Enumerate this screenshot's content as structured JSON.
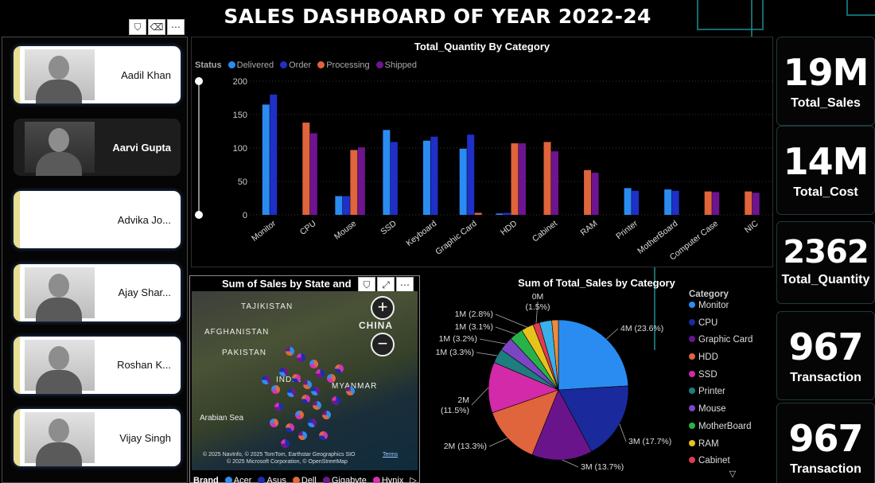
{
  "title": "SALES DASHBOARD OF YEAR 2022-24",
  "slicer": {
    "people": [
      {
        "name": "Aadil Khan",
        "selected": false
      },
      {
        "name": "Aarvi Gupta",
        "selected": true
      },
      {
        "name": "Advika Jo...",
        "selected": false
      },
      {
        "name": "Ajay Shar...",
        "selected": false
      },
      {
        "name": "Roshan K...",
        "selected": false
      },
      {
        "name": "Vijay Singh",
        "selected": false
      }
    ]
  },
  "toolbar_icons": [
    "filter-icon",
    "eraser-icon",
    "more-options-icon"
  ],
  "toolbar_glyphs": {
    "filter": "⛉",
    "eraser": "⌫",
    "more": "⋯",
    "focus": "⤢"
  },
  "kpis": [
    {
      "value": "19M",
      "label": "Total_Sales"
    },
    {
      "value": "14M",
      "label": "Total_Cost"
    },
    {
      "value": "2362",
      "label": "Total_Quantity"
    },
    {
      "value": "967",
      "label": "Transaction"
    },
    {
      "value": "967",
      "label": "Transaction"
    }
  ],
  "map": {
    "title": "Sum of Sales by State and",
    "labels": [
      "TAJIKISTAN",
      "AFGHANISTAN",
      "PAKISTAN",
      "CHINA",
      "INDIA",
      "MYANMAR",
      "Arabian Sea"
    ],
    "zoom_in": "+",
    "zoom_out": "−",
    "attribution": "© 2025 Microsoft Corporation, © OpenStreetMap",
    "attribution2": "© 2025 NavInfo, © 2025 TomTom, Earthstar Geographics SIO",
    "terms": "Terms",
    "brand_legend_title": "Brand",
    "brands": [
      {
        "name": "Acer",
        "color": "#2e8fef"
      },
      {
        "name": "Asus",
        "color": "#1a2fb0"
      },
      {
        "name": "Dell",
        "color": "#e06a3c"
      },
      {
        "name": "Gigabyte",
        "color": "#6b1a8c"
      },
      {
        "name": "Hynix",
        "color": "#d632b4"
      }
    ],
    "brand_more": "▷"
  },
  "chart_data": [
    {
      "type": "bar",
      "title": "Total_Quantity By Category",
      "legend_title": "Status",
      "categories": [
        "Monitor",
        "CPU",
        "Mouse",
        "SSD",
        "Keyboard",
        "Graphic Card",
        "HDD",
        "Cabinet",
        "RAM",
        "Printer",
        "MotherBoard",
        "Computer Case",
        "NIC"
      ],
      "ylim": [
        0,
        200
      ],
      "yticks": [
        0,
        50,
        100,
        150,
        200
      ],
      "series": [
        {
          "name": "Delivered",
          "color": "#2a8cf0",
          "values": [
            165,
            0,
            28,
            127,
            111,
            99,
            2,
            0,
            0,
            40,
            38,
            0,
            0
          ]
        },
        {
          "name": "Order",
          "color": "#1f2fc8",
          "values": [
            180,
            0,
            28,
            109,
            117,
            120,
            3,
            0,
            0,
            36,
            36,
            0,
            0
          ]
        },
        {
          "name": "Processing",
          "color": "#e0643c",
          "values": [
            0,
            138,
            97,
            0,
            0,
            3,
            107,
            109,
            67,
            0,
            0,
            35,
            35
          ]
        },
        {
          "name": "Shipped",
          "color": "#6e1490",
          "values": [
            0,
            122,
            101,
            0,
            0,
            0,
            107,
            95,
            63,
            0,
            0,
            34,
            33
          ]
        }
      ]
    },
    {
      "type": "pie",
      "title": "Sum of Total_Sales by Category",
      "legend_title": "Category",
      "slices": [
        {
          "label": "Monitor",
          "value": 23.6,
          "text": "4M (23.6%)",
          "color": "#2a8cf0"
        },
        {
          "label": "CPU",
          "value": 17.7,
          "text": "3M (17.7%)",
          "color": "#1a2a9c"
        },
        {
          "label": "Graphic Card",
          "value": 13.7,
          "text": "3M (13.7%)",
          "color": "#6a148c"
        },
        {
          "label": "HDD",
          "value": 13.3,
          "text": "2M (13.3%)",
          "color": "#e0643c"
        },
        {
          "label": "SSD",
          "value": 11.5,
          "text": "2M\n(11.5%)",
          "color": "#d22aa8"
        },
        {
          "label": "Printer",
          "value": 3.3,
          "text": "1M (3.3%)",
          "color": "#1e7d7d"
        },
        {
          "label": "Mouse",
          "value": 3.2,
          "text": "1M (3.2%)",
          "color": "#7b45c4"
        },
        {
          "label": "MotherBoard",
          "value": 3.1,
          "text": "1M (3.1%)",
          "color": "#27b34a"
        },
        {
          "label": "RAM",
          "value": 2.8,
          "text": "1M (2.8%)",
          "color": "#e6c21c"
        },
        {
          "label": "Cabinet",
          "value": 1.5,
          "text": "0M\n(1.5%)",
          "color": "#e23b4e"
        },
        {
          "label": "",
          "value": 2.8,
          "text": "",
          "color": "#3ab0e8"
        },
        {
          "label": "",
          "value": 1.5,
          "text": "",
          "color": "#f08a3a"
        }
      ],
      "legend_entries": [
        "Monitor",
        "CPU",
        "Graphic Card",
        "HDD",
        "SSD",
        "Printer",
        "Mouse",
        "MotherBoard",
        "RAM",
        "Cabinet"
      ],
      "legend_more": "▽"
    }
  ]
}
